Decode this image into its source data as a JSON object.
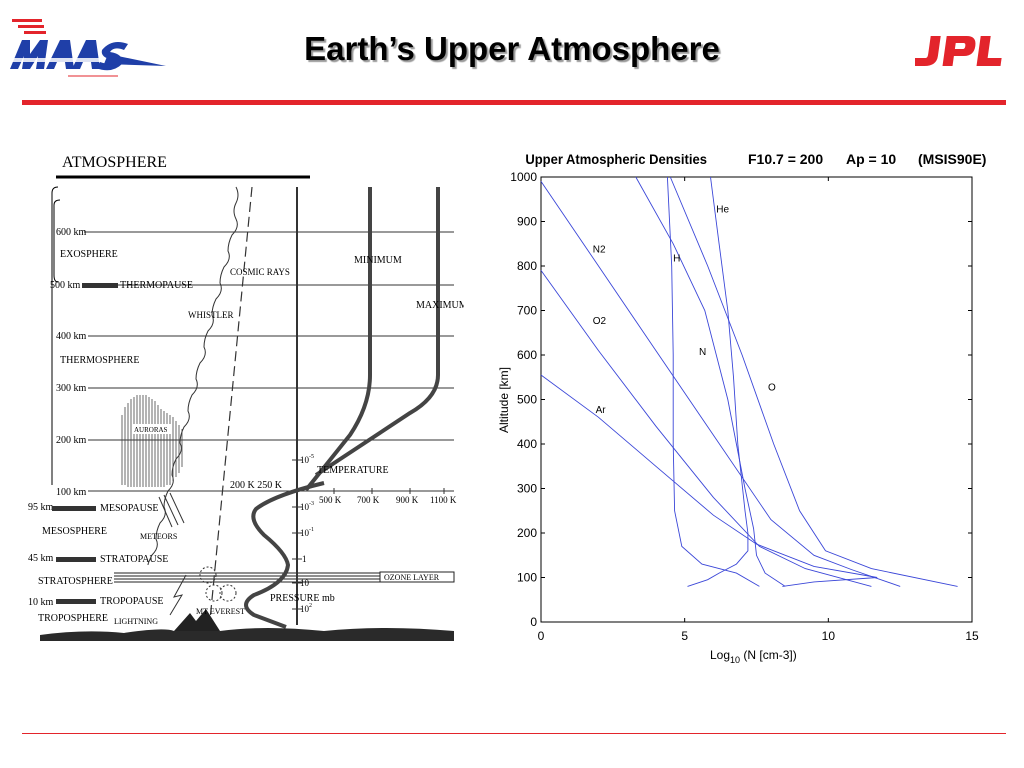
{
  "slide": {
    "title": "Earth’s Upper Atmosphere",
    "left_logo": "WAAS",
    "right_logo": "JPL",
    "colors": {
      "accent_red": "#e3242b",
      "logo_blue": "#1f3fa8",
      "curve_blue": "#3b47d8"
    }
  },
  "atmosphere_diagram": {
    "title": "ATMOSPHERE",
    "altitude_labels": [
      "600 km",
      "500 km",
      "400 km",
      "300 km",
      "200 km",
      "100 km",
      "95 km",
      "45 km",
      "10 km"
    ],
    "layers": [
      "EXOSPHERE",
      "THERMOSPHERE",
      "MESOSPHERE",
      "STRATOSPHERE",
      "TROPOSPHERE"
    ],
    "boundaries": [
      "THERMOPAUSE",
      "MESOPAUSE",
      "STRATOPAUSE",
      "TROPOPAUSE"
    ],
    "annotations": {
      "cosmic_rays": "COSMIC RAYS",
      "whistler": "WHISTLER",
      "minimum": "MINIMUM",
      "maximum": "MAXIMUM",
      "auroras": "AURORAS",
      "meteors": "METEORS",
      "temperature": "TEMPERATURE",
      "temp_scale": "200 K 250 K",
      "ozone_layer": "OZONE LAYER",
      "pressure": "PRESSURE mb",
      "mt_everest": "MT EVEREST",
      "lightning": "LIGHTNING"
    },
    "temperature_ticks": [
      "500 K",
      "700 K",
      "900 K",
      "1100 K"
    ],
    "pressure_ticks": [
      "10",
      "10",
      "10",
      "1",
      "10",
      "10"
    ],
    "pressure_exponents": [
      "-5",
      "-3",
      "-1",
      "",
      "",
      "2"
    ]
  },
  "chart_data": {
    "type": "line",
    "title": "Upper Atmospheric Densities",
    "subtitle_items": [
      "F10.7 = 200",
      "Ap = 10",
      "(MSIS90E)"
    ],
    "xlabel": "Log",
    "xlabel_sub": "10",
    "xlabel_rest": " (N  [cm-3])",
    "ylabel": "Altitude  [km]",
    "xlim": [
      0,
      15
    ],
    "ylim": [
      0,
      1000
    ],
    "x_ticks": [
      0,
      5,
      10,
      15
    ],
    "y_ticks": [
      0,
      100,
      200,
      300,
      400,
      500,
      600,
      700,
      800,
      900,
      1000
    ],
    "grid": false,
    "series": [
      {
        "name": "He",
        "label_at": [
          6.1,
          920
        ],
        "points": [
          [
            5.9,
            1000
          ],
          [
            6.2,
            850
          ],
          [
            6.5,
            700
          ],
          [
            6.7,
            550
          ],
          [
            6.85,
            400
          ],
          [
            7.1,
            250
          ],
          [
            7.2,
            200
          ],
          [
            7.2,
            160
          ],
          [
            6.8,
            130
          ],
          [
            6.2,
            110
          ],
          [
            5.8,
            95
          ],
          [
            5.1,
            80
          ]
        ]
      },
      {
        "name": "N2",
        "label_at": [
          1.8,
          830
        ],
        "points": [
          [
            0,
            990
          ],
          [
            2,
            800
          ],
          [
            4,
            610
          ],
          [
            6,
            420
          ],
          [
            8,
            230
          ],
          [
            9.5,
            150
          ],
          [
            10.8,
            118
          ],
          [
            12.5,
            80
          ]
        ]
      },
      {
        "name": "H",
        "label_at": [
          4.6,
          810
        ],
        "points": [
          [
            4.4,
            1000
          ],
          [
            4.55,
            800
          ],
          [
            4.6,
            600
          ],
          [
            4.6,
            400
          ],
          [
            4.65,
            250
          ],
          [
            4.9,
            170
          ],
          [
            5.6,
            130
          ],
          [
            6.8,
            110
          ],
          [
            7.6,
            80
          ]
        ]
      },
      {
        "name": "O2",
        "label_at": [
          1.8,
          670
        ],
        "points": [
          [
            0,
            790
          ],
          [
            2,
            610
          ],
          [
            4,
            440
          ],
          [
            6,
            280
          ],
          [
            7.6,
            170
          ],
          [
            9.2,
            120
          ],
          [
            11.5,
            80
          ]
        ]
      },
      {
        "name": "N",
        "label_at": [
          5.5,
          600
        ],
        "points": [
          [
            3.3,
            1000
          ],
          [
            4.6,
            850
          ],
          [
            5.7,
            700
          ],
          [
            6.5,
            500
          ],
          [
            7.1,
            300
          ],
          [
            7.4,
            210
          ],
          [
            7.5,
            150
          ],
          [
            7.8,
            110
          ],
          [
            8.5,
            80
          ]
        ]
      },
      {
        "name": "O",
        "label_at": [
          7.9,
          520
        ],
        "points": [
          [
            4.5,
            1000
          ],
          [
            5.8,
            800
          ],
          [
            7.0,
            600
          ],
          [
            8.1,
            400
          ],
          [
            9.0,
            250
          ],
          [
            9.9,
            160
          ],
          [
            11.5,
            120
          ],
          [
            14.5,
            80
          ]
        ]
      },
      {
        "name": "Ar",
        "label_at": [
          1.9,
          470
        ],
        "points": [
          [
            0,
            555
          ],
          [
            2,
            460
          ],
          [
            4,
            350
          ],
          [
            6,
            240
          ],
          [
            7.5,
            175
          ],
          [
            9.5,
            125
          ],
          [
            11.7,
            100
          ],
          [
            9.5,
            90
          ],
          [
            8.4,
            80
          ]
        ]
      }
    ]
  }
}
